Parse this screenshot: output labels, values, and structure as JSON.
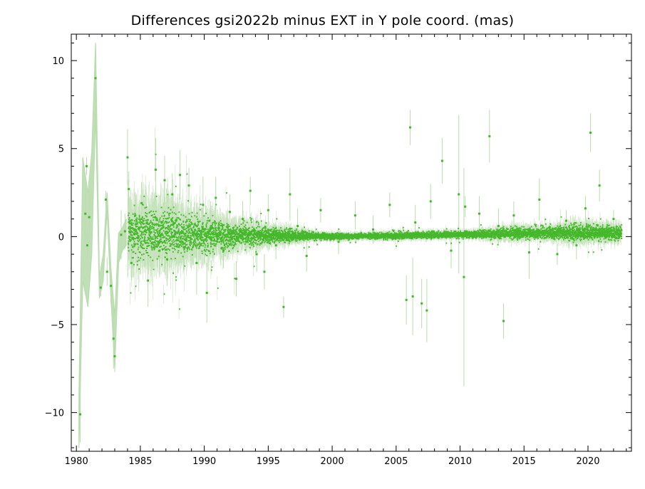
{
  "chart_data": {
    "type": "scatter",
    "title": "Differences gsi2022b minus EXT in Y pole coord. (mas)",
    "xlabel": "",
    "ylabel": "",
    "xlim": [
      1979.6,
      2023.4
    ],
    "ylim": [
      -12.2,
      11.5
    ],
    "x_ticks": [
      1980,
      1985,
      1990,
      1995,
      2000,
      2005,
      2010,
      2015,
      2020
    ],
    "y_ticks": [
      -10,
      -5,
      0,
      5,
      10
    ],
    "y_tick_labels": [
      "−10",
      "−5",
      "0",
      "5",
      "10"
    ],
    "grid": false,
    "legend": "none",
    "colors": {
      "points": "#44b82a",
      "error_bars": "#b9dcae",
      "axes": "#000000"
    },
    "error_band_early": {
      "x": [
        1980.2,
        1980.5,
        1980.9,
        1981.2,
        1981.5,
        1981.8,
        1982.1,
        1982.4,
        1982.7,
        1983.0,
        1983.3,
        1983.6,
        1983.9
      ],
      "upper": [
        -9.0,
        4.5,
        2.5,
        4.8,
        11.0,
        -2.3,
        -1.0,
        2.5,
        -1.8,
        -4.5,
        0.2,
        0.5,
        1.0
      ],
      "lower": [
        -12.0,
        -2.5,
        -4.0,
        -1.0,
        7.0,
        -3.5,
        -2.5,
        1.5,
        -3.5,
        -7.5,
        -1.5,
        -0.8,
        -0.5
      ]
    },
    "series": [
      {
        "x": [
          1980.3,
          1980.7,
          1980.8,
          1980.85,
          1981.0,
          1981.5,
          1981.9,
          1982.3,
          1982.4,
          1982.7,
          1982.9,
          1983.0,
          1983.5,
          1983.8,
          1984.0,
          1984.1,
          1984.3,
          1984.6,
          1985.1,
          1985.6,
          1986.2,
          1986.5,
          1986.9,
          1987.1,
          1987.5,
          1987.8,
          1988.1,
          1988.4,
          1988.8,
          1989.4,
          1989.9,
          1990.2,
          1990.5,
          1990.9,
          1991.5,
          1992.0,
          1992.5,
          1993.0,
          1993.6,
          1994.1,
          1994.7,
          1995.0,
          1995.6,
          1996.2,
          1996.7,
          1997.3,
          1998.0,
          1999.1,
          2000.5,
          2001.8,
          2003.2,
          2004.5,
          2005.8,
          2006.1,
          2006.3,
          2006.5,
          2007.0,
          2007.4,
          2007.7,
          2008.6,
          2009.3,
          2009.9,
          2010.3,
          2010.4,
          2011.5,
          2012.3,
          2013.0,
          2013.4,
          2014.2,
          2015.4,
          2016.2,
          2017.6,
          2018.3,
          2019.1,
          2019.8,
          2020.2,
          2020.9,
          2021.5,
          2022.0,
          2022.4
        ],
        "y": [
          -10.1,
          1.3,
          4.0,
          -0.5,
          1.1,
          9.0,
          -2.9,
          2.1,
          -2.0,
          -2.8,
          -5.8,
          -6.8,
          0.1,
          0.3,
          4.5,
          2.7,
          -1.5,
          1.2,
          1.9,
          -2.5,
          3.8,
          -0.8,
          3.2,
          -1.3,
          2.4,
          0.9,
          3.5,
          -0.6,
          2.9,
          -1.5,
          1.8,
          -3.2,
          0.5,
          2.2,
          -0.8,
          1.4,
          -2.4,
          1.0,
          2.6,
          -1.0,
          -2.0,
          1.5,
          -0.5,
          -4.0,
          2.4,
          0.6,
          -1.1,
          1.5,
          -0.3,
          1.2,
          0.4,
          1.8,
          -3.6,
          6.2,
          -3.4,
          0.8,
          -3.8,
          -4.2,
          2.0,
          4.3,
          -0.8,
          2.4,
          -2.3,
          1.7,
          1.3,
          5.7,
          0.6,
          -4.8,
          1.2,
          -0.9,
          2.1,
          -1.0,
          0.9,
          -0.5,
          1.6,
          5.9,
          2.9,
          0.4,
          1.0,
          0.15
        ],
        "err": [
          1.6,
          1.5,
          0.5,
          0.8,
          1.5,
          2.0,
          0.5,
          0.5,
          0.8,
          1.0,
          1.7,
          0.9,
          1.4,
          1.0,
          1.6,
          1.0,
          1.0,
          1.3,
          1.2,
          1.5,
          1.8,
          1.5,
          1.4,
          1.5,
          1.2,
          1.0,
          1.4,
          1.3,
          1.0,
          1.8,
          1.6,
          1.7,
          1.5,
          1.2,
          1.0,
          1.0,
          1.0,
          1.0,
          0.8,
          1.0,
          1.0,
          0.9,
          0.8,
          0.6,
          1.5,
          1.0,
          0.9,
          0.7,
          0.7,
          0.8,
          0.8,
          0.7,
          1.4,
          1.0,
          2.2,
          1.0,
          1.4,
          1.8,
          1.0,
          1.3,
          1.0,
          4.5,
          6.2,
          0.6,
          1.0,
          1.5,
          1.0,
          1.0,
          0.8,
          1.5,
          1.2,
          0.6,
          0.6,
          0.8,
          0.7,
          1.1,
          0.9,
          0.6,
          0.5,
          0.6
        ]
      }
    ],
    "dense_cloud": {
      "x_start": 1984.0,
      "x_end": 2022.6,
      "point_count": 7200,
      "spread_by_year": [
        [
          1984,
          0.95
        ],
        [
          1987,
          0.9
        ],
        [
          1990,
          0.65
        ],
        [
          1993,
          0.4
        ],
        [
          1996,
          0.25
        ],
        [
          1999,
          0.12
        ],
        [
          2002,
          0.1
        ],
        [
          2005,
          0.12
        ],
        [
          2008,
          0.12
        ],
        [
          2011,
          0.12
        ],
        [
          2014,
          0.22
        ],
        [
          2016,
          0.18
        ],
        [
          2019,
          0.3
        ],
        [
          2022,
          0.25
        ]
      ],
      "mean_by_year": [
        [
          1984,
          0.2
        ],
        [
          1990,
          0.1
        ],
        [
          2000,
          0.0
        ],
        [
          2010,
          0.1
        ],
        [
          2015,
          0.2
        ],
        [
          2022,
          0.2
        ]
      ]
    }
  }
}
